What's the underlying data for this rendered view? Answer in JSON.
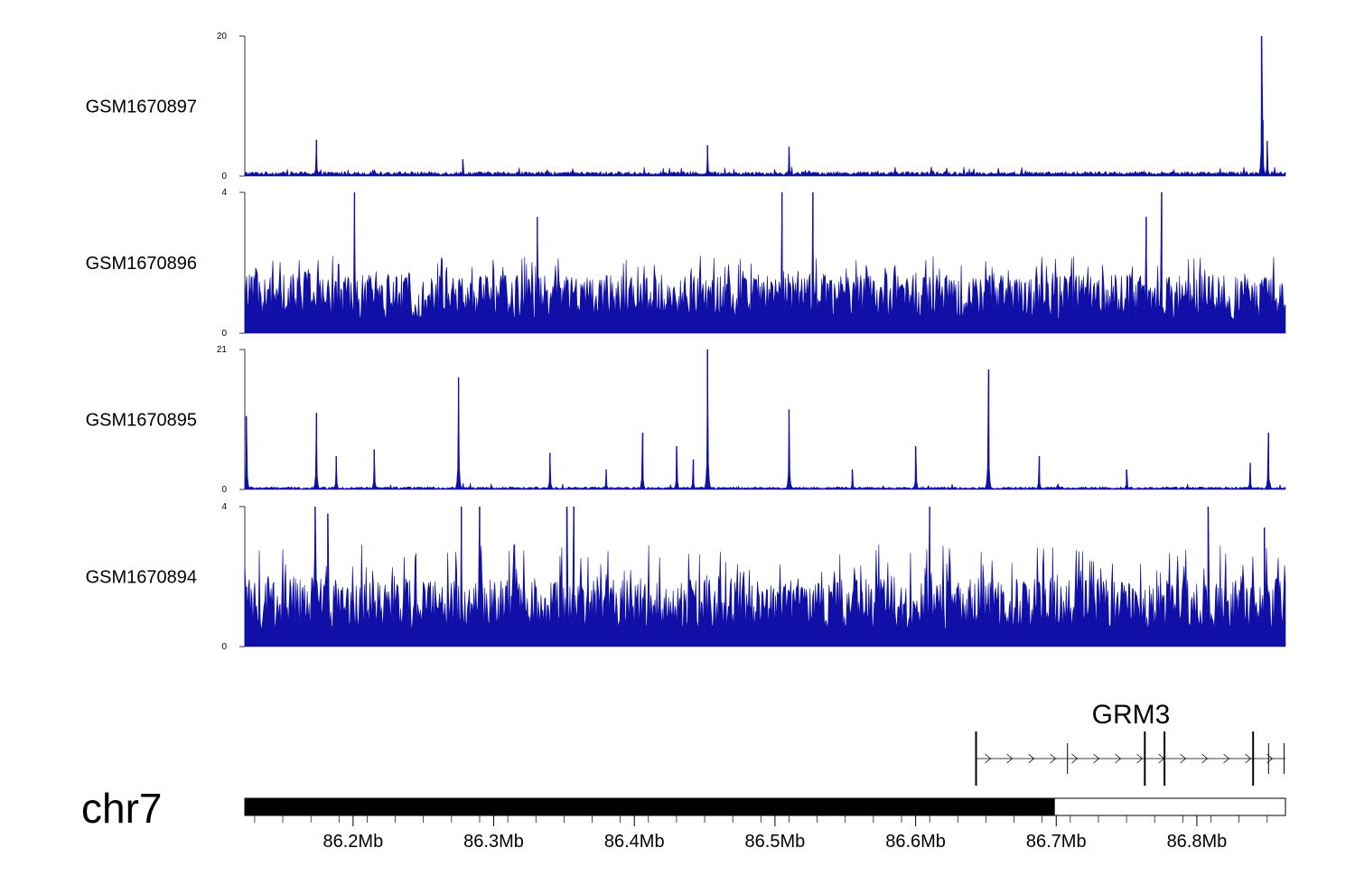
{
  "chart_data": {
    "type": "area",
    "colors": {
      "signal": "#1010a8",
      "ideogram": "#000000",
      "axis": "#000000"
    },
    "genome": {
      "chromosome": "chr7",
      "x_range_mb": [
        86.123,
        86.863
      ],
      "x_ticks": [
        86.2,
        86.3,
        86.4,
        86.5,
        86.6,
        86.7,
        86.8
      ],
      "x_tick_labels": [
        "86.2Mb",
        "86.3Mb",
        "86.4Mb",
        "86.5Mb",
        "86.6Mb",
        "86.7Mb",
        "86.8Mb"
      ],
      "ideogram_filled_until_mb": 86.699
    },
    "tracks": [
      {
        "name": "GSM1670897",
        "ylim": [
          0,
          20
        ],
        "y_tick_labels": [
          "0",
          "20"
        ],
        "baseline": 0.5,
        "max_base": 1.2,
        "spike_rate": 0.04,
        "peaks": [
          {
            "x": 86.174,
            "y": 5.2
          },
          {
            "x": 86.278,
            "y": 2.4
          },
          {
            "x": 86.452,
            "y": 4.4
          },
          {
            "x": 86.51,
            "y": 4.2
          },
          {
            "x": 86.846,
            "y": 20
          },
          {
            "x": 86.847,
            "y": 8.0
          },
          {
            "x": 86.85,
            "y": 5.0
          }
        ]
      },
      {
        "name": "GSM1670896",
        "ylim": [
          0,
          4
        ],
        "y_tick_labels": [
          "0",
          "4"
        ],
        "baseline": 1.3,
        "max_base": 2.0,
        "spike_rate": 0.14,
        "peaks": [
          {
            "x": 86.201,
            "y": 4
          },
          {
            "x": 86.331,
            "y": 3.3
          },
          {
            "x": 86.505,
            "y": 4
          },
          {
            "x": 86.527,
            "y": 4
          },
          {
            "x": 86.775,
            "y": 4
          },
          {
            "x": 86.764,
            "y": 3.3
          }
        ]
      },
      {
        "name": "GSM1670895",
        "ylim": [
          0,
          21
        ],
        "y_tick_labels": [
          "0",
          "21"
        ],
        "baseline": 0.3,
        "max_base": 0.9,
        "spike_rate": 0.02,
        "peaks": [
          {
            "x": 86.124,
            "y": 11
          },
          {
            "x": 86.174,
            "y": 11.5
          },
          {
            "x": 86.188,
            "y": 5
          },
          {
            "x": 86.215,
            "y": 6
          },
          {
            "x": 86.275,
            "y": 16.8
          },
          {
            "x": 86.34,
            "y": 5.5
          },
          {
            "x": 86.38,
            "y": 3
          },
          {
            "x": 86.406,
            "y": 8.5
          },
          {
            "x": 86.43,
            "y": 6.5
          },
          {
            "x": 86.442,
            "y": 4.5
          },
          {
            "x": 86.452,
            "y": 21
          },
          {
            "x": 86.51,
            "y": 12
          },
          {
            "x": 86.555,
            "y": 3
          },
          {
            "x": 86.6,
            "y": 6.5
          },
          {
            "x": 86.652,
            "y": 18
          },
          {
            "x": 86.688,
            "y": 5
          },
          {
            "x": 86.75,
            "y": 3
          },
          {
            "x": 86.838,
            "y": 4
          },
          {
            "x": 86.851,
            "y": 8.5
          }
        ]
      },
      {
        "name": "GSM1670894",
        "ylim": [
          0,
          4
        ],
        "y_tick_labels": [
          "0",
          "4"
        ],
        "baseline": 1.5,
        "max_base": 2.6,
        "spike_rate": 0.13,
        "peaks": [
          {
            "x": 86.173,
            "y": 4
          },
          {
            "x": 86.182,
            "y": 3.8
          },
          {
            "x": 86.277,
            "y": 4
          },
          {
            "x": 86.29,
            "y": 4
          },
          {
            "x": 86.352,
            "y": 4
          },
          {
            "x": 86.357,
            "y": 4
          },
          {
            "x": 86.61,
            "y": 4
          },
          {
            "x": 86.808,
            "y": 4
          },
          {
            "x": 86.848,
            "y": 3.4
          }
        ]
      }
    ],
    "gene": {
      "name": "GRM3",
      "start_mb": 86.643,
      "end_mb": 86.863,
      "strand": "+",
      "exons_mb": [
        86.643,
        86.708,
        86.763,
        86.777,
        86.84,
        86.851,
        86.862
      ]
    }
  }
}
